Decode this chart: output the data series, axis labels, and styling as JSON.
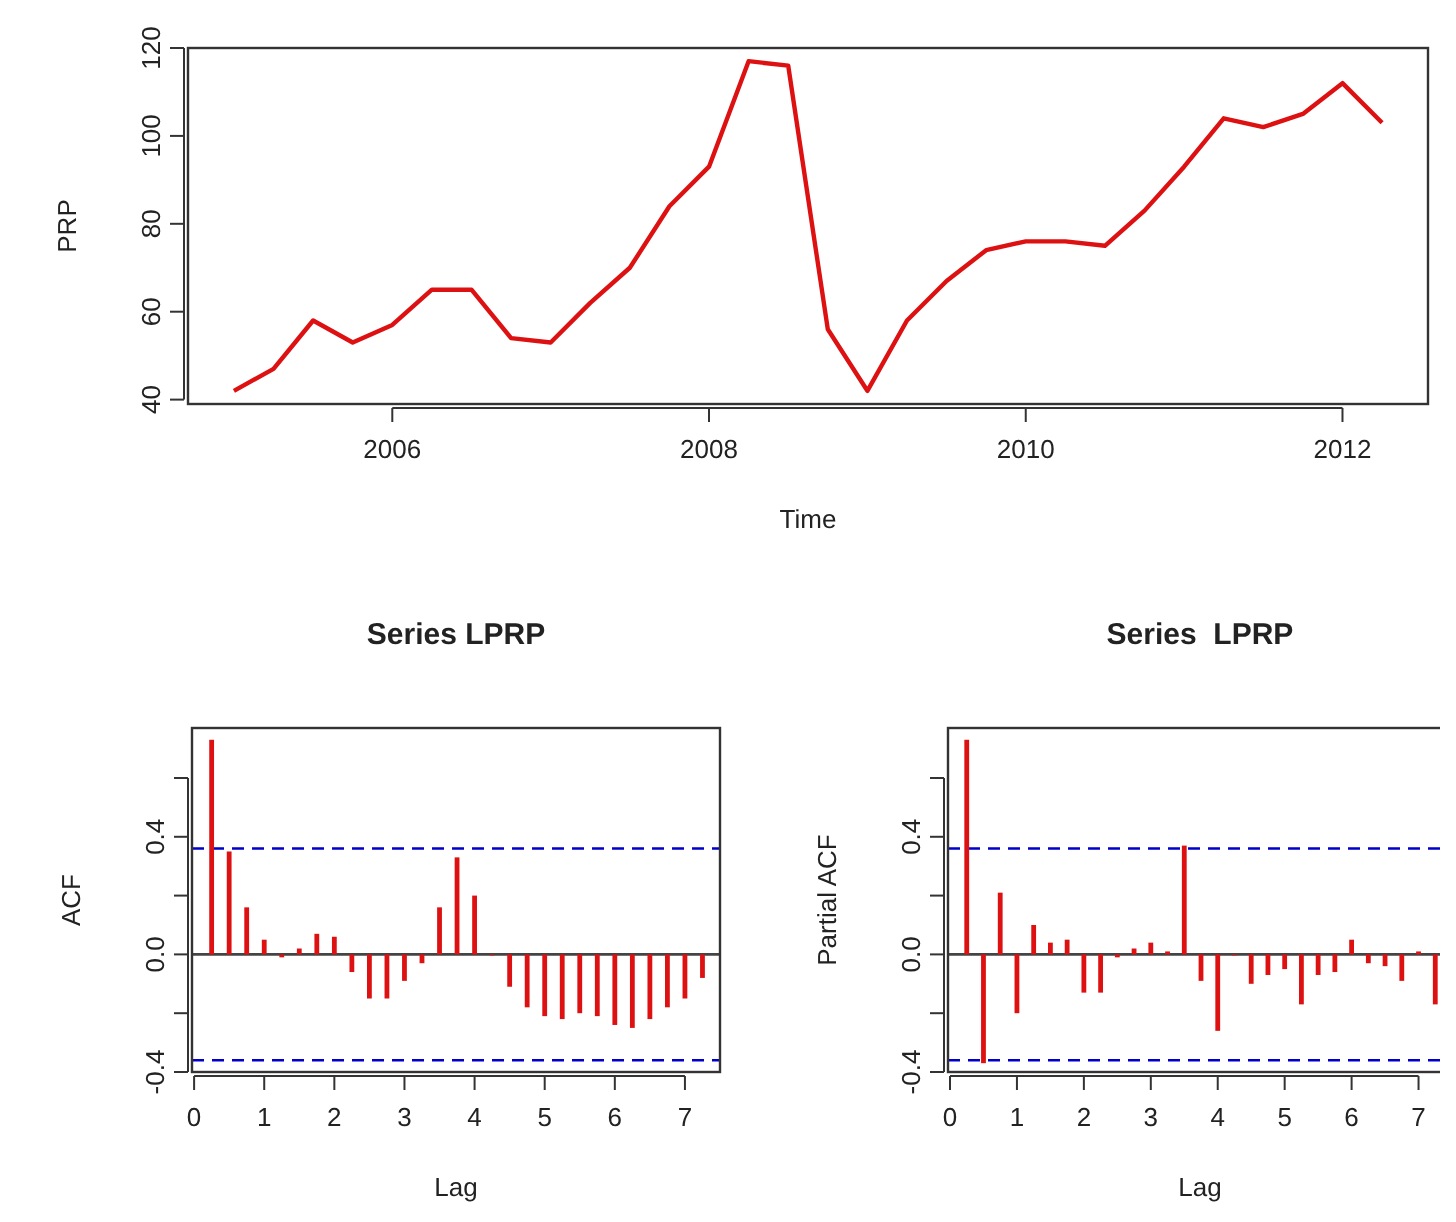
{
  "chart_data": [
    {
      "type": "line",
      "xlabel": "Time",
      "ylabel": "PRP",
      "color": "#dd1111",
      "x": [
        2005,
        2005.25,
        2005.5,
        2005.75,
        2006,
        2006.25,
        2006.5,
        2006.75,
        2007,
        2007.25,
        2007.5,
        2007.75,
        2008,
        2008.25,
        2008.5,
        2008.75,
        2009,
        2009.25,
        2009.5,
        2009.75,
        2010,
        2010.25,
        2010.5,
        2010.75,
        2011,
        2011.25,
        2011.5,
        2011.75,
        2012,
        2012.25
      ],
      "values": [
        42,
        47,
        58,
        53,
        57,
        65,
        65,
        54,
        53,
        62,
        70,
        84,
        93,
        117,
        116,
        56,
        42,
        58,
        67,
        74,
        76,
        76,
        75,
        83,
        93,
        104,
        102,
        105,
        112,
        103
      ],
      "xlim": [
        2004.71,
        2012.54
      ],
      "ylim": [
        39,
        120
      ],
      "xticks": [
        2006,
        2008,
        2010,
        2012
      ],
      "yticks": [
        40,
        60,
        80,
        100,
        120
      ]
    },
    {
      "type": "bar",
      "title": "Series LPRP",
      "xlabel": "Lag",
      "ylabel": "ACF",
      "color": "#dd1111",
      "x": [
        0.25,
        0.5,
        0.75,
        1,
        1.25,
        1.5,
        1.75,
        2,
        2.25,
        2.5,
        2.75,
        3,
        3.25,
        3.5,
        3.75,
        4,
        4.25,
        4.5,
        4.75,
        5,
        5.25,
        5.5,
        5.75,
        6,
        6.25,
        6.5,
        6.75,
        7,
        7.25
      ],
      "values": [
        0.73,
        0.35,
        0.16,
        0.05,
        -0.01,
        0.02,
        0.07,
        0.06,
        -0.06,
        -0.15,
        -0.15,
        -0.09,
        -0.03,
        0.16,
        0.33,
        0.2,
        0,
        -0.11,
        -0.18,
        -0.21,
        -0.22,
        -0.2,
        -0.21,
        -0.24,
        -0.25,
        -0.22,
        -0.18,
        -0.15,
        -0.08
      ],
      "xlim": [
        -0.03,
        7.5
      ],
      "ylim": [
        -0.4,
        0.77
      ],
      "xticks": [
        0,
        1,
        2,
        3,
        4,
        5,
        6,
        7
      ],
      "yticks": [
        -0.4,
        {
          "value": -0.2,
          "label": null
        },
        {
          "value": 0,
          "label": "0.0"
        },
        {
          "value": 0.2,
          "label": null
        },
        0.4,
        {
          "value": 0.6,
          "label": null
        }
      ],
      "ref_lines": [
        {
          "axis": "y",
          "value": 0.36,
          "color": "#0000cc",
          "line_style": "dashed"
        },
        {
          "axis": "y",
          "value": -0.36,
          "color": "#0000cc",
          "line_style": "dashed"
        }
      ]
    },
    {
      "type": "bar",
      "title": "Series  LPRP",
      "xlabel": "Lag",
      "ylabel": "Partial ACF",
      "color": "#dd1111",
      "x": [
        0.25,
        0.5,
        0.75,
        1,
        1.25,
        1.5,
        1.75,
        2,
        2.25,
        2.5,
        2.75,
        3,
        3.25,
        3.5,
        3.75,
        4,
        4.25,
        4.5,
        4.75,
        5,
        5.25,
        5.5,
        5.75,
        6,
        6.25,
        6.5,
        6.75,
        7,
        7.25
      ],
      "values": [
        0.73,
        -0.37,
        0.21,
        -0.2,
        0.1,
        0.04,
        0.05,
        -0.13,
        -0.13,
        -0.01,
        0.02,
        0.04,
        0.01,
        0.37,
        -0.09,
        -0.26,
        0,
        -0.1,
        -0.07,
        -0.05,
        -0.17,
        -0.07,
        -0.06,
        0.05,
        -0.03,
        -0.04,
        -0.09,
        0.01,
        -0.17
      ],
      "xlim": [
        -0.03,
        7.5
      ],
      "ylim": [
        -0.4,
        0.77
      ],
      "xticks": [
        0,
        1,
        2,
        3,
        4,
        5,
        6,
        7
      ],
      "yticks": [
        -0.4,
        {
          "value": -0.2,
          "label": null
        },
        {
          "value": 0,
          "label": "0.0"
        },
        {
          "value": 0.2,
          "label": null
        },
        0.4,
        {
          "value": 0.6,
          "label": null
        }
      ],
      "ref_lines": [
        {
          "axis": "y",
          "value": 0.36,
          "color": "#0000cc",
          "line_style": "dashed"
        },
        {
          "axis": "y",
          "value": -0.36,
          "color": "#0000cc",
          "line_style": "dashed"
        }
      ]
    }
  ]
}
